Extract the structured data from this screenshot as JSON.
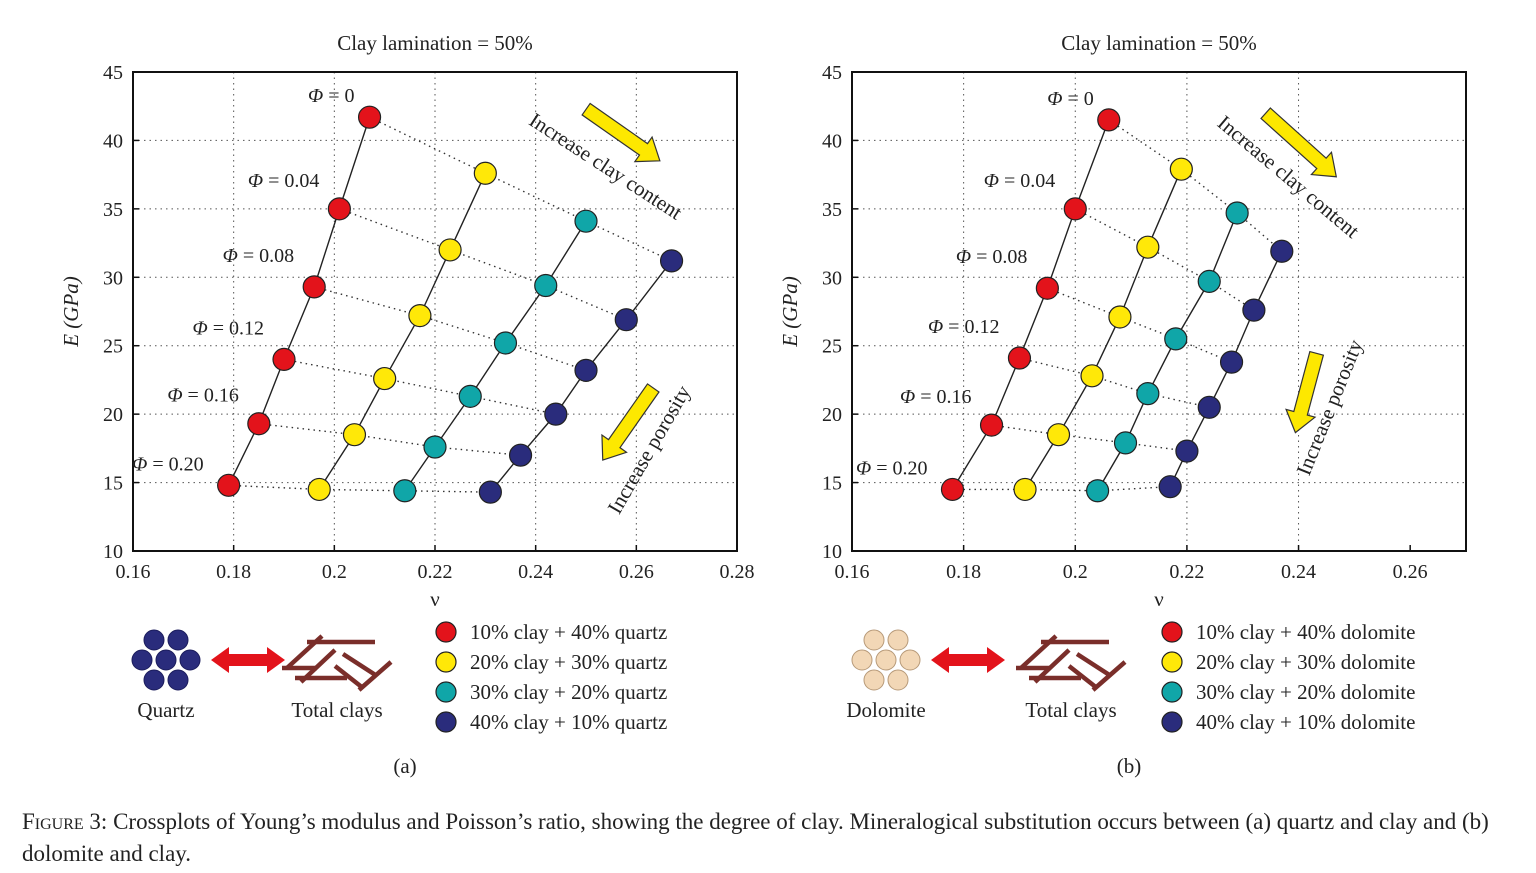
{
  "caption": {
    "label": "Figure 3:",
    "text": "Crossplots of Young’s modulus and Poisson’s ratio, showing the degree of clay. Mineralogical substitution occurs between (a) quartz and clay and (b) dolomite and clay."
  },
  "colors": {
    "red": "#e3131b",
    "yellow": "#ffe808",
    "teal": "#10a6a8",
    "navy": "#2a2c7c",
    "quartz": "#2a2c7c",
    "dolomite": "#f2d7b6",
    "clay": "#7a2e2a",
    "exchange_arrow": "#e3131b",
    "trend_arrow": "#fde800"
  },
  "chart_data": [
    {
      "type": "scatter",
      "panel_label": "(a)",
      "title": "Clay lamination = 50%",
      "xlabel": "ν",
      "ylabel": "E (GPa)",
      "xlim": [
        0.16,
        0.28
      ],
      "ylim": [
        10,
        45
      ],
      "xticks": [
        0.16,
        0.18,
        0.2,
        0.22,
        0.24,
        0.26,
        0.28
      ],
      "xtick_labels": [
        "0.16",
        "0.18",
        "0.2",
        "0.22",
        "0.24",
        "0.26",
        "0.28"
      ],
      "yticks": [
        10,
        15,
        20,
        25,
        30,
        35,
        40,
        45
      ],
      "ytick_labels": [
        "10",
        "15",
        "20",
        "25",
        "30",
        "35",
        "40",
        "45"
      ],
      "grid": true,
      "porosity_labels": [
        "Φ = 0",
        "Φ = 0.04",
        "Φ = 0.08",
        "Φ = 0.12",
        "Φ = 0.16",
        "Φ = 0.20"
      ],
      "series": [
        {
          "name": "10% clay + 40% quartz",
          "color_key": "red",
          "points": [
            [
              0.207,
              41.7
            ],
            [
              0.201,
              35.0
            ],
            [
              0.196,
              29.3
            ],
            [
              0.19,
              24.0
            ],
            [
              0.185,
              19.3
            ],
            [
              0.179,
              14.8
            ]
          ]
        },
        {
          "name": "20% clay + 30% quartz",
          "color_key": "yellow",
          "points": [
            [
              0.23,
              37.6
            ],
            [
              0.223,
              32.0
            ],
            [
              0.217,
              27.2
            ],
            [
              0.21,
              22.6
            ],
            [
              0.204,
              18.5
            ],
            [
              0.197,
              14.5
            ]
          ]
        },
        {
          "name": "30% clay + 20% quartz",
          "color_key": "teal",
          "points": [
            [
              0.25,
              34.1
            ],
            [
              0.242,
              29.4
            ],
            [
              0.234,
              25.2
            ],
            [
              0.227,
              21.3
            ],
            [
              0.22,
              17.6
            ],
            [
              0.214,
              14.4
            ]
          ]
        },
        {
          "name": "40% clay + 10% quartz",
          "color_key": "navy",
          "points": [
            [
              0.267,
              31.2
            ],
            [
              0.258,
              26.9
            ],
            [
              0.25,
              23.2
            ],
            [
              0.244,
              20.0
            ],
            [
              0.237,
              17.0
            ],
            [
              0.231,
              14.3
            ]
          ]
        }
      ],
      "annotations": {
        "clay_trend": "Increase clay content",
        "porosity_trend": "Increase porosity"
      },
      "substitution": {
        "mineral_label": "Quartz",
        "clay_label": "Total clays",
        "mineral_color_key": "quartz"
      }
    },
    {
      "type": "scatter",
      "panel_label": "(b)",
      "title": "Clay lamination = 50%",
      "xlabel": "ν",
      "ylabel": "E (GPa)",
      "xlim": [
        0.16,
        0.27
      ],
      "ylim": [
        10,
        45
      ],
      "xticks": [
        0.16,
        0.18,
        0.2,
        0.22,
        0.24,
        0.26
      ],
      "xtick_labels": [
        "0.16",
        "0.18",
        "0.2",
        "0.22",
        "0.24",
        "0.26"
      ],
      "yticks": [
        10,
        15,
        20,
        25,
        30,
        35,
        40,
        45
      ],
      "ytick_labels": [
        "10",
        "15",
        "20",
        "25",
        "30",
        "35",
        "40",
        "45"
      ],
      "grid": true,
      "porosity_labels": [
        "Φ = 0",
        "Φ = 0.04",
        "Φ = 0.08",
        "Φ = 0.12",
        "Φ = 0.16",
        "Φ = 0.20"
      ],
      "series": [
        {
          "name": "10% clay + 40% dolomite",
          "color_key": "red",
          "points": [
            [
              0.206,
              41.5
            ],
            [
              0.2,
              35.0
            ],
            [
              0.195,
              29.2
            ],
            [
              0.19,
              24.1
            ],
            [
              0.185,
              19.2
            ],
            [
              0.178,
              14.5
            ]
          ]
        },
        {
          "name": "20% clay + 30% dolomite",
          "color_key": "yellow",
          "points": [
            [
              0.219,
              37.9
            ],
            [
              0.213,
              32.2
            ],
            [
              0.208,
              27.1
            ],
            [
              0.203,
              22.8
            ],
            [
              0.197,
              18.5
            ],
            [
              0.191,
              14.5
            ]
          ]
        },
        {
          "name": "30% clay + 20% dolomite",
          "color_key": "teal",
          "points": [
            [
              0.229,
              34.7
            ],
            [
              0.224,
              29.7
            ],
            [
              0.218,
              25.5
            ],
            [
              0.213,
              21.5
            ],
            [
              0.209,
              17.9
            ],
            [
              0.204,
              14.4
            ]
          ]
        },
        {
          "name": "40% clay + 10% dolomite",
          "color_key": "navy",
          "points": [
            [
              0.237,
              31.9
            ],
            [
              0.232,
              27.6
            ],
            [
              0.228,
              23.8
            ],
            [
              0.224,
              20.5
            ],
            [
              0.22,
              17.3
            ],
            [
              0.217,
              14.7
            ]
          ]
        }
      ],
      "annotations": {
        "clay_trend": "Increase clay content",
        "porosity_trend": "Increase porosity"
      },
      "substitution": {
        "mineral_label": "Dolomite",
        "clay_label": "Total clays",
        "mineral_color_key": "dolomite"
      }
    }
  ]
}
